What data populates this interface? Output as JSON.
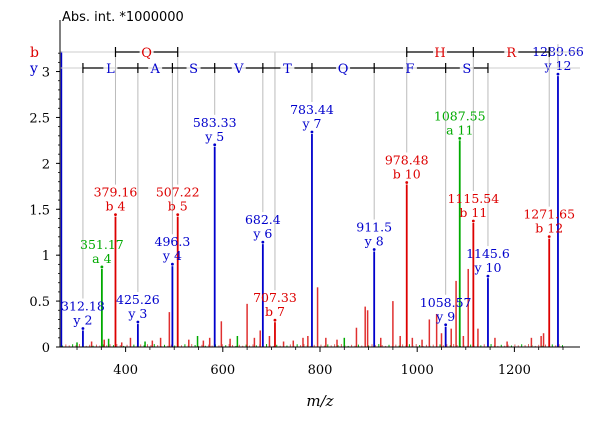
{
  "chart_data": {
    "type": "bar",
    "title": "",
    "ylabel": "Abs. int. *1000000",
    "xlabel": "m/z",
    "xlim": [
      265,
      1335
    ],
    "ylim": [
      0,
      3.3
    ],
    "x_ticks": [
      400,
      600,
      800,
      1000,
      1200
    ],
    "y_ticks": [
      0,
      0.5,
      1,
      1.5,
      2,
      2.5,
      3
    ],
    "y_tick_labels": [
      "0",
      "0.5",
      "1",
      "1.5",
      "2",
      "2.5",
      "3"
    ],
    "colors": {
      "b": "#dd0000",
      "y": "#0000cc",
      "a": "#00aa00",
      "noise": "#e03030"
    },
    "labeled_peaks": [
      {
        "mz": 312.18,
        "intensity": 0.18,
        "ion": "y 2",
        "type": "y",
        "label": "312.18"
      },
      {
        "mz": 351.17,
        "intensity": 0.85,
        "ion": "a 4",
        "type": "a",
        "label": "351.17"
      },
      {
        "mz": 379.16,
        "intensity": 1.42,
        "ion": "b 4",
        "type": "b",
        "label": "379.16"
      },
      {
        "mz": 425.26,
        "intensity": 0.25,
        "ion": "y 3",
        "type": "y",
        "label": "425.26"
      },
      {
        "mz": 496.3,
        "intensity": 0.88,
        "ion": "y 4",
        "type": "y",
        "label": "496.3"
      },
      {
        "mz": 507.22,
        "intensity": 1.42,
        "ion": "b 5",
        "type": "b",
        "label": "507.22"
      },
      {
        "mz": 583.33,
        "intensity": 2.18,
        "ion": "y 5",
        "type": "y",
        "label": "583.33"
      },
      {
        "mz": 682.4,
        "intensity": 1.12,
        "ion": "y 6",
        "type": "y",
        "label": "682.4"
      },
      {
        "mz": 707.33,
        "intensity": 0.27,
        "ion": "b 7",
        "type": "b",
        "label": "707.33"
      },
      {
        "mz": 783.44,
        "intensity": 2.32,
        "ion": "y 7",
        "type": "y",
        "label": "783.44"
      },
      {
        "mz": 911.5,
        "intensity": 1.04,
        "ion": "y 8",
        "type": "y",
        "label": "911.5"
      },
      {
        "mz": 978.48,
        "intensity": 1.77,
        "ion": "b 10",
        "type": "b",
        "label": "978.48"
      },
      {
        "mz": 1058.57,
        "intensity": 0.22,
        "ion": "y 9",
        "type": "y",
        "label": "1058.57"
      },
      {
        "mz": 1087.55,
        "intensity": 2.25,
        "ion": "a 11",
        "type": "a",
        "label": "1087.55"
      },
      {
        "mz": 1115.54,
        "intensity": 1.35,
        "ion": "b 11",
        "type": "b",
        "label": "1115.54"
      },
      {
        "mz": 1145.6,
        "intensity": 0.75,
        "ion": "y 10",
        "type": "y",
        "label": "1145.6"
      },
      {
        "mz": 1271.65,
        "intensity": 1.18,
        "ion": "b 12",
        "type": "b",
        "label": "1271.65"
      },
      {
        "mz": 1289.66,
        "intensity": 2.95,
        "ion": "y 12",
        "type": "y",
        "label": "1289.66"
      }
    ],
    "other_peaks": [
      {
        "mz": 268,
        "intensity": 3.22,
        "color": "#0000cc"
      },
      {
        "mz": 300,
        "intensity": 0.05,
        "color": "#00aa00"
      },
      {
        "mz": 330,
        "intensity": 0.06,
        "color": "#e03030"
      },
      {
        "mz": 356,
        "intensity": 0.08,
        "color": "#e03030"
      },
      {
        "mz": 365,
        "intensity": 0.09,
        "color": "#00aa00"
      },
      {
        "mz": 392,
        "intensity": 0.05,
        "color": "#e03030"
      },
      {
        "mz": 410,
        "intensity": 0.1,
        "color": "#e03030"
      },
      {
        "mz": 440,
        "intensity": 0.06,
        "color": "#00aa00"
      },
      {
        "mz": 455,
        "intensity": 0.07,
        "color": "#e03030"
      },
      {
        "mz": 472,
        "intensity": 0.1,
        "color": "#e03030"
      },
      {
        "mz": 490,
        "intensity": 0.38,
        "color": "#e03030"
      },
      {
        "mz": 530,
        "intensity": 0.08,
        "color": "#e03030"
      },
      {
        "mz": 548,
        "intensity": 0.12,
        "color": "#00aa00"
      },
      {
        "mz": 560,
        "intensity": 0.07,
        "color": "#e03030"
      },
      {
        "mz": 573,
        "intensity": 0.1,
        "color": "#e03030"
      },
      {
        "mz": 597,
        "intensity": 0.28,
        "color": "#e03030"
      },
      {
        "mz": 615,
        "intensity": 0.09,
        "color": "#e03030"
      },
      {
        "mz": 630,
        "intensity": 0.12,
        "color": "#00aa00"
      },
      {
        "mz": 650,
        "intensity": 0.47,
        "color": "#e03030"
      },
      {
        "mz": 665,
        "intensity": 0.1,
        "color": "#e03030"
      },
      {
        "mz": 677,
        "intensity": 0.18,
        "color": "#e03030"
      },
      {
        "mz": 696,
        "intensity": 0.12,
        "color": "#e03030"
      },
      {
        "mz": 725,
        "intensity": 0.06,
        "color": "#e03030"
      },
      {
        "mz": 745,
        "intensity": 0.07,
        "color": "#e03030"
      },
      {
        "mz": 765,
        "intensity": 0.1,
        "color": "#e03030"
      },
      {
        "mz": 775,
        "intensity": 0.12,
        "color": "#e03030"
      },
      {
        "mz": 795,
        "intensity": 0.65,
        "color": "#e03030"
      },
      {
        "mz": 812,
        "intensity": 0.1,
        "color": "#e03030"
      },
      {
        "mz": 835,
        "intensity": 0.08,
        "color": "#e03030"
      },
      {
        "mz": 850,
        "intensity": 0.1,
        "color": "#00aa00"
      },
      {
        "mz": 875,
        "intensity": 0.21,
        "color": "#e03030"
      },
      {
        "mz": 893,
        "intensity": 0.44,
        "color": "#e03030"
      },
      {
        "mz": 898,
        "intensity": 0.4,
        "color": "#e03030"
      },
      {
        "mz": 925,
        "intensity": 0.1,
        "color": "#e03030"
      },
      {
        "mz": 950,
        "intensity": 0.5,
        "color": "#e03030"
      },
      {
        "mz": 965,
        "intensity": 0.12,
        "color": "#e03030"
      },
      {
        "mz": 990,
        "intensity": 0.1,
        "color": "#e03030"
      },
      {
        "mz": 1010,
        "intensity": 0.08,
        "color": "#e03030"
      },
      {
        "mz": 1025,
        "intensity": 0.3,
        "color": "#e03030"
      },
      {
        "mz": 1040,
        "intensity": 0.36,
        "color": "#e03030"
      },
      {
        "mz": 1050,
        "intensity": 0.15,
        "color": "#e03030"
      },
      {
        "mz": 1070,
        "intensity": 0.2,
        "color": "#e03030"
      },
      {
        "mz": 1080,
        "intensity": 0.72,
        "color": "#e03030"
      },
      {
        "mz": 1095,
        "intensity": 0.12,
        "color": "#e03030"
      },
      {
        "mz": 1105,
        "intensity": 0.85,
        "color": "#e03030"
      },
      {
        "mz": 1125,
        "intensity": 0.2,
        "color": "#e03030"
      },
      {
        "mz": 1160,
        "intensity": 0.1,
        "color": "#e03030"
      },
      {
        "mz": 1185,
        "intensity": 0.06,
        "color": "#e03030"
      },
      {
        "mz": 1235,
        "intensity": 0.1,
        "color": "#e03030"
      },
      {
        "mz": 1255,
        "intensity": 0.12,
        "color": "#e03030"
      },
      {
        "mz": 1260,
        "intensity": 0.15,
        "color": "#e03030"
      }
    ],
    "sequence_rows": [
      {
        "label": "b",
        "color": "#dd0000",
        "boundaries": [
          379.16,
          507.22,
          978.48,
          1115.54,
          1271.65
        ],
        "residues": [
          {
            "letter": "Q",
            "from": 379.16,
            "to": 507.22
          },
          {
            "letter": "H",
            "from": 978.48,
            "to": 1115.54
          },
          {
            "letter": "R",
            "from": 1115.54,
            "to": 1271.65
          }
        ]
      },
      {
        "label": "y",
        "color": "#0000cc",
        "boundaries": [
          312.18,
          425.26,
          496.3,
          583.33,
          682.4,
          783.44,
          911.5,
          1058.57,
          1145.6
        ],
        "residues": [
          {
            "letter": "L",
            "from": 312.18,
            "to": 425.26
          },
          {
            "letter": "A",
            "from": 425.26,
            "to": 496.3
          },
          {
            "letter": "S",
            "from": 496.3,
            "to": 583.33
          },
          {
            "letter": "V",
            "from": 583.33,
            "to": 682.4
          },
          {
            "letter": "T",
            "from": 682.4,
            "to": 783.44
          },
          {
            "letter": "Q",
            "from": 783.44,
            "to": 911.5
          },
          {
            "letter": "F",
            "from": 911.5,
            "to": 1058.57
          },
          {
            "letter": "S",
            "from": 1058.57,
            "to": 1145.6
          }
        ]
      }
    ]
  }
}
